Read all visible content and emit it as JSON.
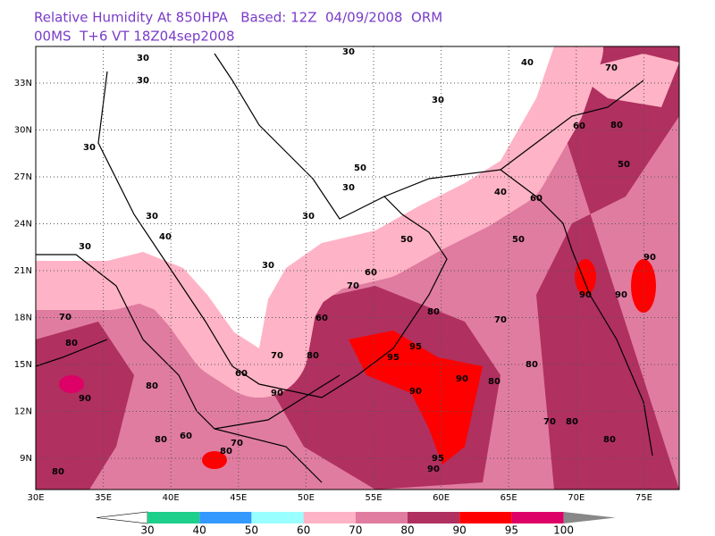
{
  "header": {
    "title_line1": "Relative Humidity At 850HPA   Based: 12Z  04/09/2008  ORM",
    "title_line2": "00MS  T+6 VT 18Z04sep2008"
  },
  "map": {
    "lat_labels": [
      "33N",
      "30N",
      "27N",
      "24N",
      "21N",
      "18N",
      "15N",
      "12N",
      "9N"
    ],
    "lon_labels": [
      "30E",
      "35E",
      "40E",
      "45E",
      "50E",
      "55E",
      "60E",
      "65E",
      "70E",
      "75E"
    ],
    "contour_labels": [
      "30",
      "30",
      "30",
      "30",
      "30",
      "30",
      "30",
      "30",
      "30",
      "30",
      "40",
      "40",
      "50",
      "50",
      "50",
      "40",
      "60",
      "60",
      "50",
      "70",
      "60",
      "60",
      "70",
      "70",
      "80",
      "80",
      "80",
      "90",
      "80",
      "95",
      "95",
      "90",
      "90",
      "80",
      "90",
      "80",
      "70",
      "80",
      "90",
      "90",
      "70",
      "80",
      "95",
      "90",
      "60",
      "60",
      "70",
      "80",
      "70",
      "80",
      "90",
      "80",
      "80"
    ]
  },
  "legend": {
    "labels": [
      30,
      40,
      50,
      60,
      70,
      80,
      90,
      95,
      100
    ],
    "colors": [
      "#ffffff",
      "#1ccf8a",
      "#3399ff",
      "#99ffff",
      "#ffb3c6",
      "#e07ca0",
      "#b0305f",
      "#ff0000",
      "#dd0066",
      "#888888"
    ]
  }
}
